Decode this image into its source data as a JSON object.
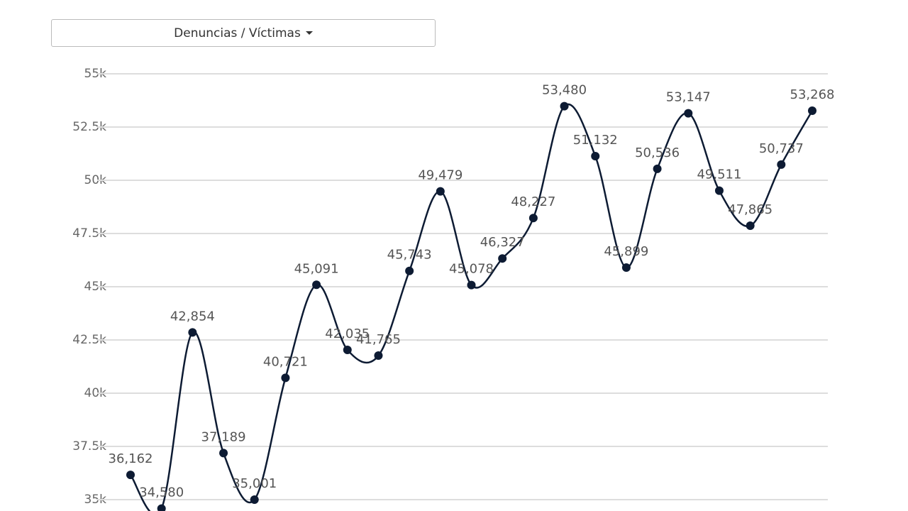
{
  "controls": {
    "dropdown": "Denuncias / Víctimas"
  },
  "chart_data": {
    "type": "line",
    "series": [
      {
        "color": "#0d1b33",
        "values": [
          36162,
          34580,
          42854,
          37189,
          35001,
          40721,
          45091,
          42035,
          41765,
          45743,
          49479,
          45078,
          46327,
          48227,
          53480,
          51132,
          45899,
          50536,
          53147,
          49511,
          47865,
          50737,
          53268
        ],
        "value_labels": [
          "36,162",
          "34,580",
          "42,854",
          "37,189",
          "35,001",
          "40,721",
          "45,091",
          "42,035",
          "41,765",
          "45,743",
          "49,479",
          "45,078",
          "46,327",
          "48,227",
          "53,480",
          "51,132",
          "45,899",
          "50,536",
          "53,147",
          "49,511",
          "47,865",
          "50,737",
          "53,268"
        ]
      }
    ],
    "ylim": [
      35000,
      55000
    ],
    "yticks": [
      {
        "value": 35000,
        "label": "35k"
      },
      {
        "value": 37500,
        "label": "37.5k"
      },
      {
        "value": 40000,
        "label": "40k"
      },
      {
        "value": 42500,
        "label": "42.5k"
      },
      {
        "value": 45000,
        "label": "45k"
      },
      {
        "value": 47500,
        "label": "47.5k"
      },
      {
        "value": 50000,
        "label": "50k"
      },
      {
        "value": 52500,
        "label": "52.5k"
      },
      {
        "value": 55000,
        "label": "55k"
      }
    ],
    "grid": true
  }
}
